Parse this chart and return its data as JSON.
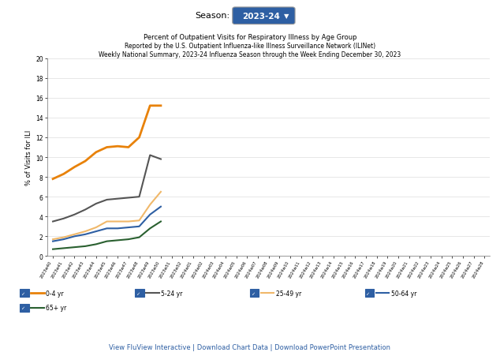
{
  "title_line1": "Percent of Outpatient Visits for Respiratory Illness by Age Group",
  "title_line2": "Reported by the U.S. Outpatient Influenza-like Illness Surveillance Network (ILINet)",
  "title_line3": "Weekly National Summary, 2023-24 Influenza Season through the Week Ending December 30, 2023",
  "season_label": "Season:",
  "season_value": "2023-24",
  "ylabel": "% of Visits for ILI",
  "ylim": [
    0,
    20
  ],
  "yticks": [
    0,
    2,
    4,
    6,
    8,
    10,
    12,
    14,
    16,
    18,
    20
  ],
  "footer": "View FluView Interactive | Download Chart Data | Download PowerPoint Presentation",
  "x_labels": [
    "2023w40",
    "2023w41",
    "2023w42",
    "2023w43",
    "2023w44",
    "2023w45",
    "2023w46",
    "2023w47",
    "2023w48",
    "2023w49",
    "2023w50",
    "2023w51",
    "2023w52",
    "2024w01",
    "2024w02",
    "2024w03",
    "2024w04",
    "2024w05",
    "2024w06",
    "2024w07",
    "2024w08",
    "2024w09",
    "2024w10",
    "2024w11",
    "2024w12",
    "2024w13",
    "2024w14",
    "2024w15",
    "2024w16",
    "2024w17",
    "2024w18",
    "2024w19",
    "2024w20",
    "2024w21",
    "2024w22",
    "2024w23",
    "2024w24",
    "2024w25",
    "2024w26",
    "2024w27",
    "2024w28"
  ],
  "series": {
    "0-4 yr": [
      7.8,
      8.3,
      9.0,
      9.6,
      10.5,
      11.0,
      11.1,
      11.0,
      12.0,
      15.2,
      15.2,
      null,
      null,
      null,
      null,
      null,
      null,
      null,
      null,
      null,
      null,
      null,
      null,
      null,
      null,
      null,
      null,
      null,
      null,
      null,
      null,
      null,
      null,
      null,
      null,
      null,
      null,
      null,
      null,
      null,
      null
    ],
    "5-24 yr": [
      3.5,
      3.8,
      4.2,
      4.7,
      5.3,
      5.7,
      5.8,
      5.9,
      6.0,
      10.2,
      9.8,
      null,
      null,
      null,
      null,
      null,
      null,
      null,
      null,
      null,
      null,
      null,
      null,
      null,
      null,
      null,
      null,
      null,
      null,
      null,
      null,
      null,
      null,
      null,
      null,
      null,
      null,
      null,
      null,
      null,
      null
    ],
    "25-49 yr": [
      1.7,
      1.9,
      2.2,
      2.5,
      2.9,
      3.5,
      3.5,
      3.5,
      3.6,
      5.2,
      6.5,
      null,
      null,
      null,
      null,
      null,
      null,
      null,
      null,
      null,
      null,
      null,
      null,
      null,
      null,
      null,
      null,
      null,
      null,
      null,
      null,
      null,
      null,
      null,
      null,
      null,
      null,
      null,
      null,
      null,
      null
    ],
    "50-64 yr": [
      1.5,
      1.7,
      2.0,
      2.2,
      2.5,
      2.8,
      2.8,
      2.9,
      3.0,
      4.2,
      5.0,
      null,
      null,
      null,
      null,
      null,
      null,
      null,
      null,
      null,
      null,
      null,
      null,
      null,
      null,
      null,
      null,
      null,
      null,
      null,
      null,
      null,
      null,
      null,
      null,
      null,
      null,
      null,
      null,
      null,
      null
    ],
    "65+ yr": [
      0.7,
      0.8,
      0.9,
      1.0,
      1.2,
      1.5,
      1.6,
      1.7,
      1.9,
      2.8,
      3.5,
      null,
      null,
      null,
      null,
      null,
      null,
      null,
      null,
      null,
      null,
      null,
      null,
      null,
      null,
      null,
      null,
      null,
      null,
      null,
      null,
      null,
      null,
      null,
      null,
      null,
      null,
      null,
      null,
      null,
      null
    ]
  },
  "line_configs": [
    {
      "name": "0-4 yr",
      "color": "#E8820A",
      "lw": 2.0
    },
    {
      "name": "5-24 yr",
      "color": "#555555",
      "lw": 1.5
    },
    {
      "name": "25-49 yr",
      "color": "#F0B86A",
      "lw": 1.5
    },
    {
      "name": "50-64 yr",
      "color": "#2E5FA3",
      "lw": 1.5
    },
    {
      "name": "65+ yr",
      "color": "#2A6030",
      "lw": 1.5
    }
  ],
  "bg_color": "#ffffff",
  "grid_color": "#dddddd",
  "checkbox_color": "#2E5FA3",
  "season_box_color": "#2E5FA3",
  "footer_color": "#2E5FA3"
}
